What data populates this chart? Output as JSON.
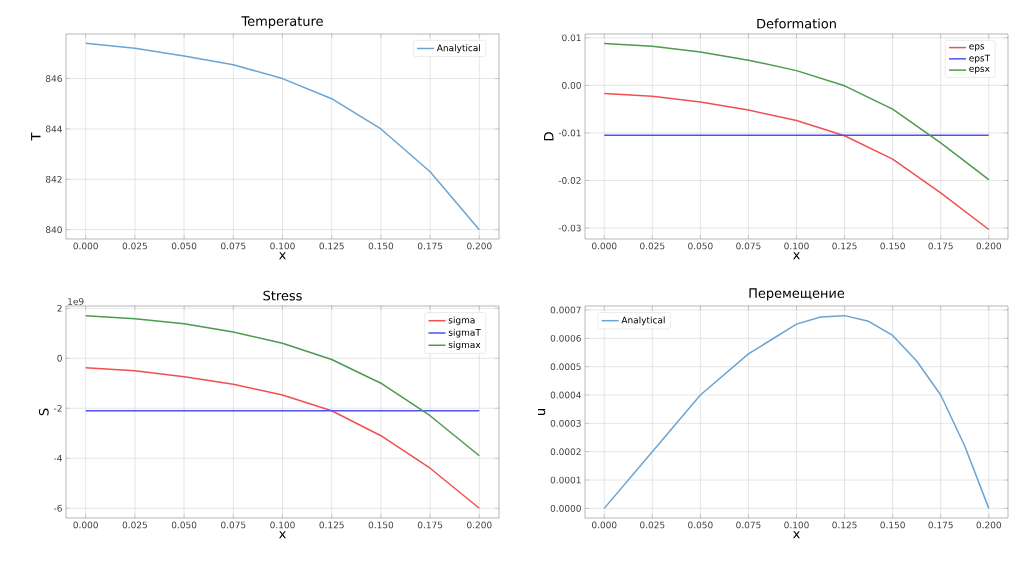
{
  "chart_data": [
    {
      "type": "line",
      "title": "Temperature",
      "xlabel": "x",
      "ylabel": "T",
      "x": [
        0,
        0.025,
        0.05,
        0.075,
        0.1,
        0.125,
        0.15,
        0.175,
        0.2
      ],
      "series": [
        {
          "name": "Analytical",
          "color": "#6aa4d4",
          "values": [
            847.4,
            847.2,
            846.9,
            846.55,
            846.0,
            845.2,
            844.0,
            842.3,
            840.0
          ]
        }
      ],
      "xlim": [
        -0.01,
        0.21
      ],
      "ylim": [
        839.63,
        847.77
      ],
      "xticks": [
        {
          "value": 0,
          "label": "0.000"
        },
        0.025,
        {
          "value": 0.05,
          "label": "0.050"
        },
        0.075,
        {
          "value": 0.1,
          "label": "0.100"
        },
        0.125,
        {
          "value": 0.15,
          "label": "0.150"
        },
        0.175,
        {
          "value": 0.2,
          "label": "0.200"
        }
      ],
      "yticks": [
        840,
        842,
        844,
        846
      ],
      "grid": true,
      "legend": "top right"
    },
    {
      "type": "line",
      "title": "Deformation",
      "xlabel": "x",
      "ylabel": "D",
      "x": [
        0,
        0.025,
        0.05,
        0.075,
        0.1,
        0.125,
        0.15,
        0.175,
        0.2
      ],
      "series": [
        {
          "name": "eps",
          "color": "#f05050",
          "values": [
            -0.0017,
            -0.0023,
            -0.0035,
            -0.0052,
            -0.0074,
            -0.0106,
            -0.0155,
            -0.0226,
            -0.0303
          ]
        },
        {
          "name": "epsT",
          "color": "#5050f0",
          "values": [
            -0.0105,
            -0.0105,
            -0.0105,
            -0.0105,
            -0.0105,
            -0.0105,
            -0.0105,
            -0.0105,
            -0.0105
          ]
        },
        {
          "name": "epsx",
          "color": "#4c9a4c",
          "values": [
            0.0088,
            0.0082,
            0.007,
            0.0053,
            0.0031,
            -0.0001,
            -0.005,
            -0.0121,
            -0.0198
          ]
        }
      ],
      "xlim": [
        -0.01,
        0.21
      ],
      "ylim": [
        -0.0323,
        0.0108
      ],
      "xticks": [
        {
          "value": 0,
          "label": "0.000"
        },
        0.025,
        {
          "value": 0.05,
          "label": "0.050"
        },
        0.075,
        {
          "value": 0.1,
          "label": "0.100"
        },
        0.125,
        {
          "value": 0.15,
          "label": "0.150"
        },
        0.175,
        {
          "value": 0.2,
          "label": "0.200"
        }
      ],
      "yticks": [
        -0.03,
        -0.02,
        -0.01,
        {
          "value": 0,
          "label": "0.00"
        },
        0.01
      ],
      "grid": true,
      "legend": "top right"
    },
    {
      "type": "line",
      "title": "Stress",
      "xlabel": "x",
      "ylabel": "S",
      "annotations": [
        "1e9"
      ],
      "x": [
        0,
        0.025,
        0.05,
        0.075,
        0.1,
        0.125,
        0.15,
        0.175,
        0.2
      ],
      "series": [
        {
          "name": "sigma",
          "color": "#f05050",
          "values": [
            -0.38,
            -0.5,
            -0.74,
            -1.04,
            -1.47,
            -2.1,
            -3.1,
            -4.4,
            -6.0
          ]
        },
        {
          "name": "sigmaT",
          "color": "#5050f0",
          "values": [
            -2.1,
            -2.1,
            -2.1,
            -2.1,
            -2.1,
            -2.1,
            -2.1,
            -2.1,
            -2.1
          ]
        },
        {
          "name": "sigmax",
          "color": "#4c9a4c",
          "values": [
            1.7,
            1.58,
            1.38,
            1.05,
            0.6,
            -0.05,
            -1.0,
            -2.3,
            -3.9
          ]
        }
      ],
      "xlim": [
        -0.01,
        0.21
      ],
      "ylim": [
        -6.39,
        2.09
      ],
      "xticks": [
        {
          "value": 0,
          "label": "0.000"
        },
        0.025,
        {
          "value": 0.05,
          "label": "0.050"
        },
        0.075,
        {
          "value": 0.1,
          "label": "0.100"
        },
        0.125,
        {
          "value": 0.15,
          "label": "0.150"
        },
        0.175,
        {
          "value": 0.2,
          "label": "0.200"
        }
      ],
      "yticks": [
        -6,
        -4,
        -2,
        0,
        2
      ],
      "grid": true,
      "legend": "top right"
    },
    {
      "type": "line",
      "title": "Перемещение",
      "xlabel": "x",
      "ylabel": "u",
      "x": [
        0,
        0.025,
        0.05,
        0.075,
        0.1,
        0.1125,
        0.125,
        0.1375,
        0.15,
        0.1625,
        0.175,
        0.1875,
        0.2
      ],
      "series": [
        {
          "name": "Analytical",
          "color": "#6aa4d4",
          "values": [
            0,
            0.0002,
            0.0004,
            0.000545,
            0.00065,
            0.000675,
            0.00068,
            0.00066,
            0.00061,
            0.00052,
            0.0004,
            0.00022,
            0
          ]
        }
      ],
      "xlim": [
        -0.01,
        0.21
      ],
      "ylim": [
        -3.4e-05,
        0.000714
      ],
      "xticks": [
        {
          "value": 0,
          "label": "0.000"
        },
        0.025,
        {
          "value": 0.05,
          "label": "0.050"
        },
        0.075,
        {
          "value": 0.1,
          "label": "0.100"
        },
        0.125,
        {
          "value": 0.15,
          "label": "0.150"
        },
        0.175,
        {
          "value": 0.2,
          "label": "0.200"
        }
      ],
      "yticks": [
        {
          "value": 0,
          "label": "0.0000"
        },
        0.0001,
        0.0002,
        0.0003,
        0.0004,
        0.0005,
        0.0006,
        0.0007
      ],
      "grid": true,
      "legend": "top left"
    }
  ]
}
